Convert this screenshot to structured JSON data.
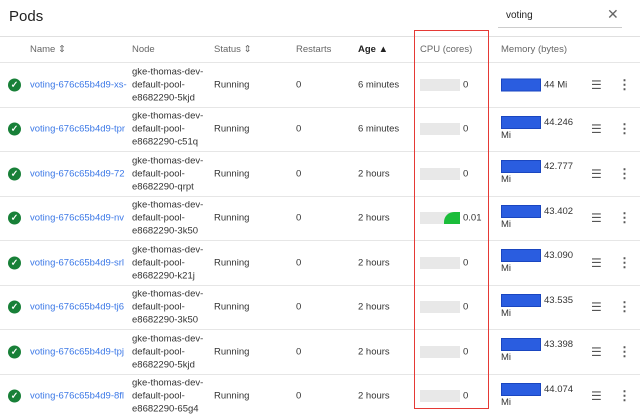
{
  "header": {
    "title": "Pods",
    "search_value": "voting",
    "close_icon": "close-icon"
  },
  "columns": {
    "name": "Name ⇕",
    "node": "Node",
    "status": "Status ⇕",
    "restarts": "Restarts",
    "age": "Age ▲",
    "cpu": "CPU (cores)",
    "memory": "Memory (bytes)"
  },
  "colors": {
    "link": "#3b78e7",
    "cpu": "#1bbd3a",
    "memory": "#2a5de0",
    "highlight": "#e53935",
    "ok": "#188038"
  },
  "rows": [
    {
      "name": "voting-676c65b4d9-xs-",
      "node": [
        "gke-thomas-dev-",
        "default-pool-",
        "e8682290-5kjd"
      ],
      "status": "Running",
      "restarts": "0",
      "age": "6 minutes",
      "cpu": "0",
      "cpu_fraction": 0,
      "memory": "44 Mi",
      "memory_unit": ""
    },
    {
      "name": "voting-676c65b4d9-tpr",
      "node": [
        "gke-thomas-dev-",
        "default-pool-",
        "e8682290-c51q"
      ],
      "status": "Running",
      "restarts": "0",
      "age": "6 minutes",
      "cpu": "0",
      "cpu_fraction": 0,
      "memory": "44.246",
      "memory_unit": "Mi"
    },
    {
      "name": "voting-676c65b4d9-72",
      "node": [
        "gke-thomas-dev-",
        "default-pool-",
        "e8682290-qrpt"
      ],
      "status": "Running",
      "restarts": "0",
      "age": "2 hours",
      "cpu": "0",
      "cpu_fraction": 0,
      "memory": "42.777",
      "memory_unit": "Mi"
    },
    {
      "name": "voting-676c65b4d9-nv",
      "node": [
        "gke-thomas-dev-",
        "default-pool-",
        "e8682290-3k50"
      ],
      "status": "Running",
      "restarts": "0",
      "age": "2 hours",
      "cpu": "0.01",
      "cpu_fraction": 0.4,
      "memory": "43.402",
      "memory_unit": "Mi"
    },
    {
      "name": "voting-676c65b4d9-srl",
      "node": [
        "gke-thomas-dev-",
        "default-pool-",
        "e8682290-k21j"
      ],
      "status": "Running",
      "restarts": "0",
      "age": "2 hours",
      "cpu": "0",
      "cpu_fraction": 0,
      "memory": "43.090",
      "memory_unit": "Mi"
    },
    {
      "name": "voting-676c65b4d9-tj6",
      "node": [
        "gke-thomas-dev-",
        "default-pool-",
        "e8682290-3k50"
      ],
      "status": "Running",
      "restarts": "0",
      "age": "2 hours",
      "cpu": "0",
      "cpu_fraction": 0,
      "memory": "43.535",
      "memory_unit": "Mi"
    },
    {
      "name": "voting-676c65b4d9-tpj",
      "node": [
        "gke-thomas-dev-",
        "default-pool-",
        "e8682290-5kjd"
      ],
      "status": "Running",
      "restarts": "0",
      "age": "2 hours",
      "cpu": "0",
      "cpu_fraction": 0,
      "memory": "43.398",
      "memory_unit": "Mi"
    },
    {
      "name": "voting-676c65b4d9-8fl",
      "node": [
        "gke-thomas-dev-",
        "default-pool-",
        "e8682290-65g4"
      ],
      "status": "Running",
      "restarts": "0",
      "age": "2 hours",
      "cpu": "0",
      "cpu_fraction": 0,
      "memory": "44.074",
      "memory_unit": "Mi"
    }
  ]
}
